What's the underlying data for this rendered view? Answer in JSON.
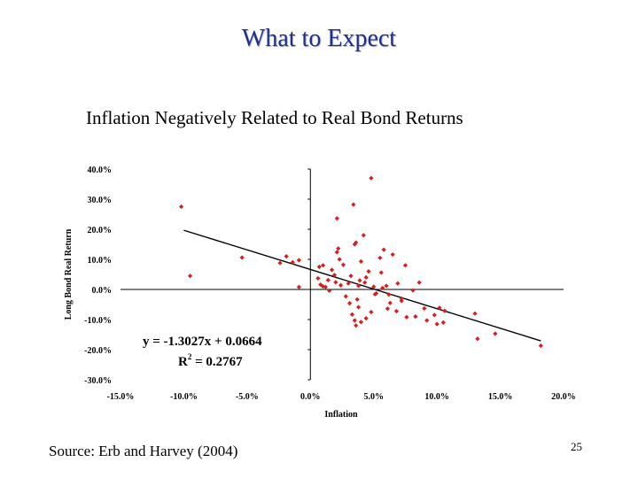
{
  "slide": {
    "title": "What to Expect",
    "subtitle": "Inflation Negatively Related to Real Bond Returns",
    "source": "Source: Erb and Harvey (2004)",
    "page_number": "25"
  },
  "colors": {
    "title": "#1f2f8c",
    "points": "#d42020",
    "trendline": "#000000"
  },
  "chart_data": {
    "type": "scatter",
    "title": "",
    "xlabel": "Inflation",
    "ylabel": "Long Bond Real Return",
    "xlim": [
      -15,
      20
    ],
    "ylim": [
      -30,
      40
    ],
    "x_ticks": [
      "-15.0%",
      "-10.0%",
      "-5.0%",
      "0.0%",
      "5.0%",
      "10.0%",
      "15.0%",
      "20.0%"
    ],
    "y_ticks": [
      "40.0%",
      "30.0%",
      "20.0%",
      "10.0%",
      "0.0%",
      "-10.0%",
      "-20.0%",
      "-30.0%"
    ],
    "trendline": {
      "equation": "y = -1.3027x + 0.0664",
      "r2_prefix": "R",
      "r2_sup": "2",
      "r2_value": " = 0.2767",
      "slope": -1.3027,
      "intercept": 6.64,
      "x_range": [
        -10,
        18.2
      ]
    },
    "points": [
      [
        -10.2,
        27.5
      ],
      [
        -9.5,
        4.5
      ],
      [
        -5.4,
        10.6
      ],
      [
        -2.4,
        8.8
      ],
      [
        -1.9,
        11.0
      ],
      [
        -1.4,
        9.0
      ],
      [
        -0.9,
        9.7
      ],
      [
        0.7,
        7.5
      ],
      [
        1.0,
        8.0
      ],
      [
        -0.9,
        0.8
      ],
      [
        0.6,
        3.7
      ],
      [
        0.8,
        1.6
      ],
      [
        1.0,
        1.0
      ],
      [
        1.2,
        0.8
      ],
      [
        1.4,
        3.1
      ],
      [
        1.5,
        -0.4
      ],
      [
        1.7,
        6.5
      ],
      [
        1.9,
        4.8
      ],
      [
        2.0,
        2.4
      ],
      [
        2.1,
        12.4
      ],
      [
        2.2,
        13.6
      ],
      [
        2.3,
        10.0
      ],
      [
        2.4,
        1.4
      ],
      [
        2.6,
        8.2
      ],
      [
        2.8,
        -2.3
      ],
      [
        3.0,
        2.0
      ],
      [
        3.2,
        4.5
      ],
      [
        3.4,
        28.2
      ],
      [
        3.5,
        15.0
      ],
      [
        3.6,
        15.6
      ],
      [
        3.7,
        -3.3
      ],
      [
        3.8,
        1.2
      ],
      [
        3.9,
        3.0
      ],
      [
        4.0,
        9.3
      ],
      [
        4.2,
        18.0
      ],
      [
        4.3,
        2.3
      ],
      [
        4.4,
        4.0
      ],
      [
        4.6,
        6.0
      ],
      [
        4.8,
        37.0
      ],
      [
        5.0,
        0.9
      ],
      [
        5.2,
        -1.3
      ],
      [
        5.5,
        10.5
      ],
      [
        5.6,
        5.6
      ],
      [
        5.8,
        13.2
      ],
      [
        6.0,
        1.2
      ],
      [
        6.2,
        -1.7
      ],
      [
        6.5,
        11.6
      ],
      [
        6.9,
        2.0
      ],
      [
        7.2,
        -3.0
      ],
      [
        7.5,
        8.0
      ],
      [
        8.1,
        -0.3
      ],
      [
        8.3,
        -9.0
      ],
      [
        8.6,
        2.3
      ],
      [
        3.1,
        -4.6
      ],
      [
        3.3,
        -8.3
      ],
      [
        3.5,
        -10.3
      ],
      [
        3.6,
        -12.0
      ],
      [
        3.8,
        -5.9
      ],
      [
        4.0,
        -10.8
      ],
      [
        4.4,
        -9.6
      ],
      [
        4.8,
        -7.5
      ],
      [
        5.1,
        -1.6
      ],
      [
        6.1,
        -6.4
      ],
      [
        6.3,
        -4.5
      ],
      [
        6.8,
        -7.2
      ],
      [
        7.2,
        -3.8
      ],
      [
        7.6,
        -9.2
      ],
      [
        9.2,
        -10.3
      ],
      [
        9.8,
        -8.5
      ],
      [
        10.0,
        -11.5
      ],
      [
        10.2,
        -6.1
      ],
      [
        10.6,
        -7.1
      ],
      [
        10.5,
        -11.0
      ],
      [
        13.0,
        -8.0
      ],
      [
        13.2,
        -16.4
      ],
      [
        14.6,
        -14.7
      ],
      [
        18.2,
        -18.7
      ],
      [
        2.1,
        23.6
      ],
      [
        5.7,
        0.5
      ],
      [
        9.0,
        -6.3
      ]
    ]
  }
}
